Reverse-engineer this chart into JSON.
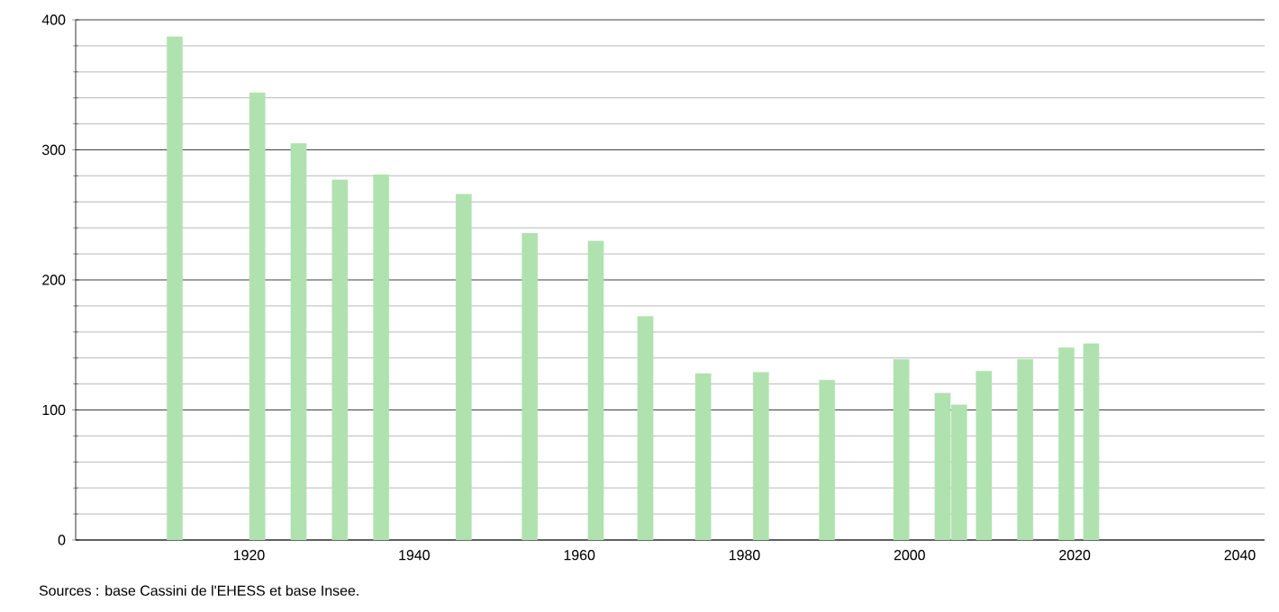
{
  "chart_data": {
    "type": "bar",
    "x": [
      1911,
      1921,
      1926,
      1931,
      1936,
      1946,
      1954,
      1962,
      1968,
      1975,
      1982,
      1990,
      1999,
      2004,
      2006,
      2009,
      2014,
      2019,
      2022
    ],
    "values": [
      387,
      344,
      305,
      277,
      281,
      266,
      236,
      230,
      172,
      128,
      129,
      123,
      139,
      113,
      104,
      130,
      139,
      148,
      151
    ],
    "color": "#b0e2b0",
    "xlim": [
      1899,
      2043
    ],
    "xticks": [
      1920,
      1940,
      1960,
      1980,
      2000,
      2020,
      2040
    ],
    "ylim": [
      0,
      400
    ],
    "yticks": [
      0,
      100,
      200,
      300,
      400
    ],
    "grid": "y",
    "annotations": [
      "Sources : base Cassini de l'EHESS et base Insee."
    ]
  }
}
